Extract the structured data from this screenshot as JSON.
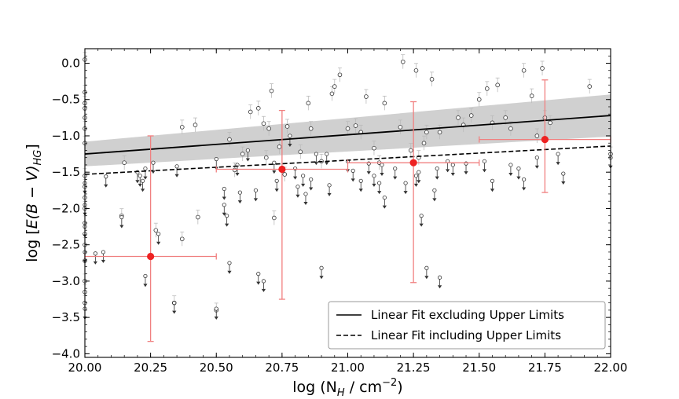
{
  "chart_data": {
    "type": "scatter",
    "title": "",
    "xlabel": "log (N_H / cm^-2)",
    "xlabel_parts": {
      "prefix": "log (N",
      "sub": "H",
      "mid": " / cm",
      "sup": "−2",
      "suffix": ")"
    },
    "ylabel": "log [E(B − V)_HG]",
    "ylabel_parts": {
      "prefix": "log [",
      "italic": "E(B − V)",
      "sub": "HG",
      "suffix": "]"
    },
    "xlim": [
      20.0,
      22.0
    ],
    "ylim": [
      -4.05,
      0.2
    ],
    "x_ticks": [
      20.0,
      20.25,
      20.5,
      20.75,
      21.0,
      21.25,
      21.5,
      21.75,
      22.0
    ],
    "x_tick_labels": [
      "20.00",
      "20.25",
      "20.50",
      "20.75",
      "21.00",
      "21.25",
      "21.50",
      "21.75",
      "22.00"
    ],
    "y_ticks": [
      0.0,
      -0.5,
      -1.0,
      -1.5,
      -2.0,
      -2.5,
      -3.0,
      -3.5,
      -4.0
    ],
    "y_tick_labels": [
      "0.0",
      "−0.5",
      "−1.0",
      "−1.5",
      "−2.0",
      "−2.5",
      "−3.0",
      "−3.5",
      "−4.0"
    ],
    "legend": {
      "position": "lower-right",
      "entries": [
        {
          "label": "Linear Fit excluding Upper Limits",
          "style": "solid"
        },
        {
          "label": "Linear Fit including Upper Limits",
          "style": "dashed"
        }
      ]
    },
    "fit_excluding_upper_limits": {
      "x": [
        20.0,
        22.0
      ],
      "y": [
        -1.25,
        -0.72
      ]
    },
    "fit_including_upper_limits": {
      "x": [
        20.0,
        22.0
      ],
      "y": [
        -1.53,
        -1.14
      ]
    },
    "confidence_band": {
      "x": [
        20.0,
        22.0
      ],
      "y_upper": [
        -1.08,
        -0.43
      ],
      "y_lower": [
        -1.42,
        -1.01
      ]
    },
    "binned_means": [
      {
        "x": 20.25,
        "y": -2.66,
        "x_err": 0.25,
        "y_low": -3.83,
        "y_high": -1.0
      },
      {
        "x": 20.75,
        "y": -1.46,
        "x_err": 0.25,
        "y_low": -3.25,
        "y_high": -0.65
      },
      {
        "x": 21.25,
        "y": -1.37,
        "x_err": 0.25,
        "y_low": -3.02,
        "y_high": -0.53
      },
      {
        "x": 21.75,
        "y": -1.05,
        "x_err": 0.25,
        "y_low": -1.78,
        "y_high": -0.23
      }
    ],
    "detections": [
      {
        "x": 20.0,
        "y": 0.05
      },
      {
        "x": 20.0,
        "y": -0.4
      },
      {
        "x": 20.0,
        "y": -0.55
      },
      {
        "x": 20.0,
        "y": -0.62
      },
      {
        "x": 20.0,
        "y": -0.75
      },
      {
        "x": 20.0,
        "y": -0.9
      },
      {
        "x": 20.0,
        "y": -1.1
      },
      {
        "x": 20.0,
        "y": -1.55
      },
      {
        "x": 20.0,
        "y": -1.7
      },
      {
        "x": 20.0,
        "y": -1.85
      },
      {
        "x": 20.0,
        "y": -2.0
      },
      {
        "x": 20.0,
        "y": -2.2
      },
      {
        "x": 20.0,
        "y": -2.35
      },
      {
        "x": 20.0,
        "y": -2.5
      },
      {
        "x": 20.0,
        "y": -2.72
      },
      {
        "x": 20.0,
        "y": -3.0
      },
      {
        "x": 20.0,
        "y": -3.15
      },
      {
        "x": 20.0,
        "y": -3.3
      },
      {
        "x": 20.14,
        "y": -2.1
      },
      {
        "x": 20.15,
        "y": -1.37
      },
      {
        "x": 20.27,
        "y": -2.3
      },
      {
        "x": 20.34,
        "y": -3.3
      },
      {
        "x": 20.37,
        "y": -0.88
      },
      {
        "x": 20.37,
        "y": -2.42
      },
      {
        "x": 20.42,
        "y": -0.85
      },
      {
        "x": 20.43,
        "y": -2.12
      },
      {
        "x": 20.5,
        "y": -3.4
      },
      {
        "x": 20.55,
        "y": -1.05
      },
      {
        "x": 20.57,
        "y": -1.47
      },
      {
        "x": 20.6,
        "y": -1.25
      },
      {
        "x": 20.63,
        "y": -0.67
      },
      {
        "x": 20.66,
        "y": -0.62
      },
      {
        "x": 20.68,
        "y": -0.83
      },
      {
        "x": 20.7,
        "y": -0.9
      },
      {
        "x": 20.69,
        "y": -1.3
      },
      {
        "x": 20.71,
        "y": -0.38
      },
      {
        "x": 20.72,
        "y": -2.13
      },
      {
        "x": 20.74,
        "y": -1.15
      },
      {
        "x": 20.76,
        "y": -1.53
      },
      {
        "x": 20.77,
        "y": -0.87
      },
      {
        "x": 20.82,
        "y": -1.22
      },
      {
        "x": 20.85,
        "y": -0.55
      },
      {
        "x": 20.86,
        "y": -0.9
      },
      {
        "x": 20.9,
        "y": -1.35
      },
      {
        "x": 20.94,
        "y": -0.42
      },
      {
        "x": 20.95,
        "y": -0.32
      },
      {
        "x": 20.97,
        "y": -0.16
      },
      {
        "x": 21.0,
        "y": -0.9
      },
      {
        "x": 21.03,
        "y": -0.86
      },
      {
        "x": 21.05,
        "y": -0.95
      },
      {
        "x": 21.07,
        "y": -0.46
      },
      {
        "x": 21.1,
        "y": -1.17
      },
      {
        "x": 21.12,
        "y": -1.37
      },
      {
        "x": 21.14,
        "y": -0.55
      },
      {
        "x": 21.2,
        "y": -0.88
      },
      {
        "x": 21.21,
        "y": 0.02
      },
      {
        "x": 21.24,
        "y": -1.2
      },
      {
        "x": 21.26,
        "y": -0.1
      },
      {
        "x": 21.27,
        "y": -1.3
      },
      {
        "x": 21.29,
        "y": -1.1
      },
      {
        "x": 21.3,
        "y": -0.95
      },
      {
        "x": 21.32,
        "y": -0.22
      },
      {
        "x": 21.35,
        "y": -0.95
      },
      {
        "x": 21.42,
        "y": -0.75
      },
      {
        "x": 21.44,
        "y": -0.85
      },
      {
        "x": 21.47,
        "y": -0.72
      },
      {
        "x": 21.5,
        "y": -0.5
      },
      {
        "x": 21.53,
        "y": -0.35
      },
      {
        "x": 21.55,
        "y": -0.82
      },
      {
        "x": 21.57,
        "y": -0.3
      },
      {
        "x": 21.6,
        "y": -0.75
      },
      {
        "x": 21.62,
        "y": -0.9
      },
      {
        "x": 21.67,
        "y": -0.1
      },
      {
        "x": 21.7,
        "y": -0.45
      },
      {
        "x": 21.72,
        "y": -1.0
      },
      {
        "x": 21.74,
        "y": -0.07
      },
      {
        "x": 21.75,
        "y": -0.75
      },
      {
        "x": 21.77,
        "y": -0.82
      },
      {
        "x": 21.92,
        "y": -0.32
      },
      {
        "x": 22.0,
        "y": -1.25
      }
    ],
    "upper_limits": [
      {
        "x": 20.0,
        "y": -1.65
      },
      {
        "x": 20.0,
        "y": -1.95
      },
      {
        "x": 20.0,
        "y": -2.25
      },
      {
        "x": 20.0,
        "y": -2.6
      },
      {
        "x": 20.0,
        "y": -3.38
      },
      {
        "x": 20.04,
        "y": -2.62
      },
      {
        "x": 20.07,
        "y": -2.6
      },
      {
        "x": 20.08,
        "y": -1.56
      },
      {
        "x": 20.14,
        "y": -2.12
      },
      {
        "x": 20.2,
        "y": -1.5
      },
      {
        "x": 20.21,
        "y": -1.55
      },
      {
        "x": 20.22,
        "y": -1.62
      },
      {
        "x": 20.23,
        "y": -1.45
      },
      {
        "x": 20.23,
        "y": -2.93
      },
      {
        "x": 20.26,
        "y": -1.37
      },
      {
        "x": 20.28,
        "y": -2.35
      },
      {
        "x": 20.34,
        "y": -3.3
      },
      {
        "x": 20.35,
        "y": -1.42
      },
      {
        "x": 20.5,
        "y": -1.32
      },
      {
        "x": 20.5,
        "y": -3.38
      },
      {
        "x": 20.53,
        "y": -1.73
      },
      {
        "x": 20.53,
        "y": -1.95
      },
      {
        "x": 20.54,
        "y": -2.1
      },
      {
        "x": 20.55,
        "y": -2.75
      },
      {
        "x": 20.58,
        "y": -1.4
      },
      {
        "x": 20.59,
        "y": -1.78
      },
      {
        "x": 20.62,
        "y": -1.2
      },
      {
        "x": 20.65,
        "y": -1.75
      },
      {
        "x": 20.66,
        "y": -2.9
      },
      {
        "x": 20.68,
        "y": -3.0
      },
      {
        "x": 20.72,
        "y": -1.37
      },
      {
        "x": 20.73,
        "y": -1.62
      },
      {
        "x": 20.78,
        "y": -1.0
      },
      {
        "x": 20.8,
        "y": -1.45
      },
      {
        "x": 20.81,
        "y": -1.7
      },
      {
        "x": 20.83,
        "y": -1.55
      },
      {
        "x": 20.84,
        "y": -1.8
      },
      {
        "x": 20.86,
        "y": -1.6
      },
      {
        "x": 20.88,
        "y": -1.25
      },
      {
        "x": 20.9,
        "y": -2.82
      },
      {
        "x": 20.92,
        "y": -1.25
      },
      {
        "x": 20.93,
        "y": -1.68
      },
      {
        "x": 21.0,
        "y": -1.35
      },
      {
        "x": 21.02,
        "y": -1.48
      },
      {
        "x": 21.05,
        "y": -1.62
      },
      {
        "x": 21.08,
        "y": -1.38
      },
      {
        "x": 21.1,
        "y": -1.55
      },
      {
        "x": 21.12,
        "y": -1.65
      },
      {
        "x": 21.13,
        "y": -1.4
      },
      {
        "x": 21.14,
        "y": -1.85
      },
      {
        "x": 21.18,
        "y": -1.45
      },
      {
        "x": 21.22,
        "y": -1.65
      },
      {
        "x": 21.26,
        "y": -1.55
      },
      {
        "x": 21.27,
        "y": -1.5
      },
      {
        "x": 21.28,
        "y": -2.1
      },
      {
        "x": 21.3,
        "y": -2.82
      },
      {
        "x": 21.33,
        "y": -1.75
      },
      {
        "x": 21.34,
        "y": -1.45
      },
      {
        "x": 21.35,
        "y": -2.95
      },
      {
        "x": 21.38,
        "y": -1.35
      },
      {
        "x": 21.4,
        "y": -1.4
      },
      {
        "x": 21.45,
        "y": -1.38
      },
      {
        "x": 21.52,
        "y": -1.35
      },
      {
        "x": 21.55,
        "y": -1.62
      },
      {
        "x": 21.62,
        "y": -1.4
      },
      {
        "x": 21.65,
        "y": -1.45
      },
      {
        "x": 21.67,
        "y": -1.6
      },
      {
        "x": 21.72,
        "y": -1.3
      },
      {
        "x": 21.8,
        "y": -1.25
      },
      {
        "x": 21.82,
        "y": -1.52
      },
      {
        "x": 22.0,
        "y": -1.3
      }
    ],
    "colors": {
      "fit_line": "#000000",
      "band": "#c8c8c8",
      "binned_mean": "#ee2222",
      "binned_error": "#f08080",
      "points": "#333333",
      "point_errors": "#bbbbbb",
      "arrows": "#333333"
    }
  }
}
